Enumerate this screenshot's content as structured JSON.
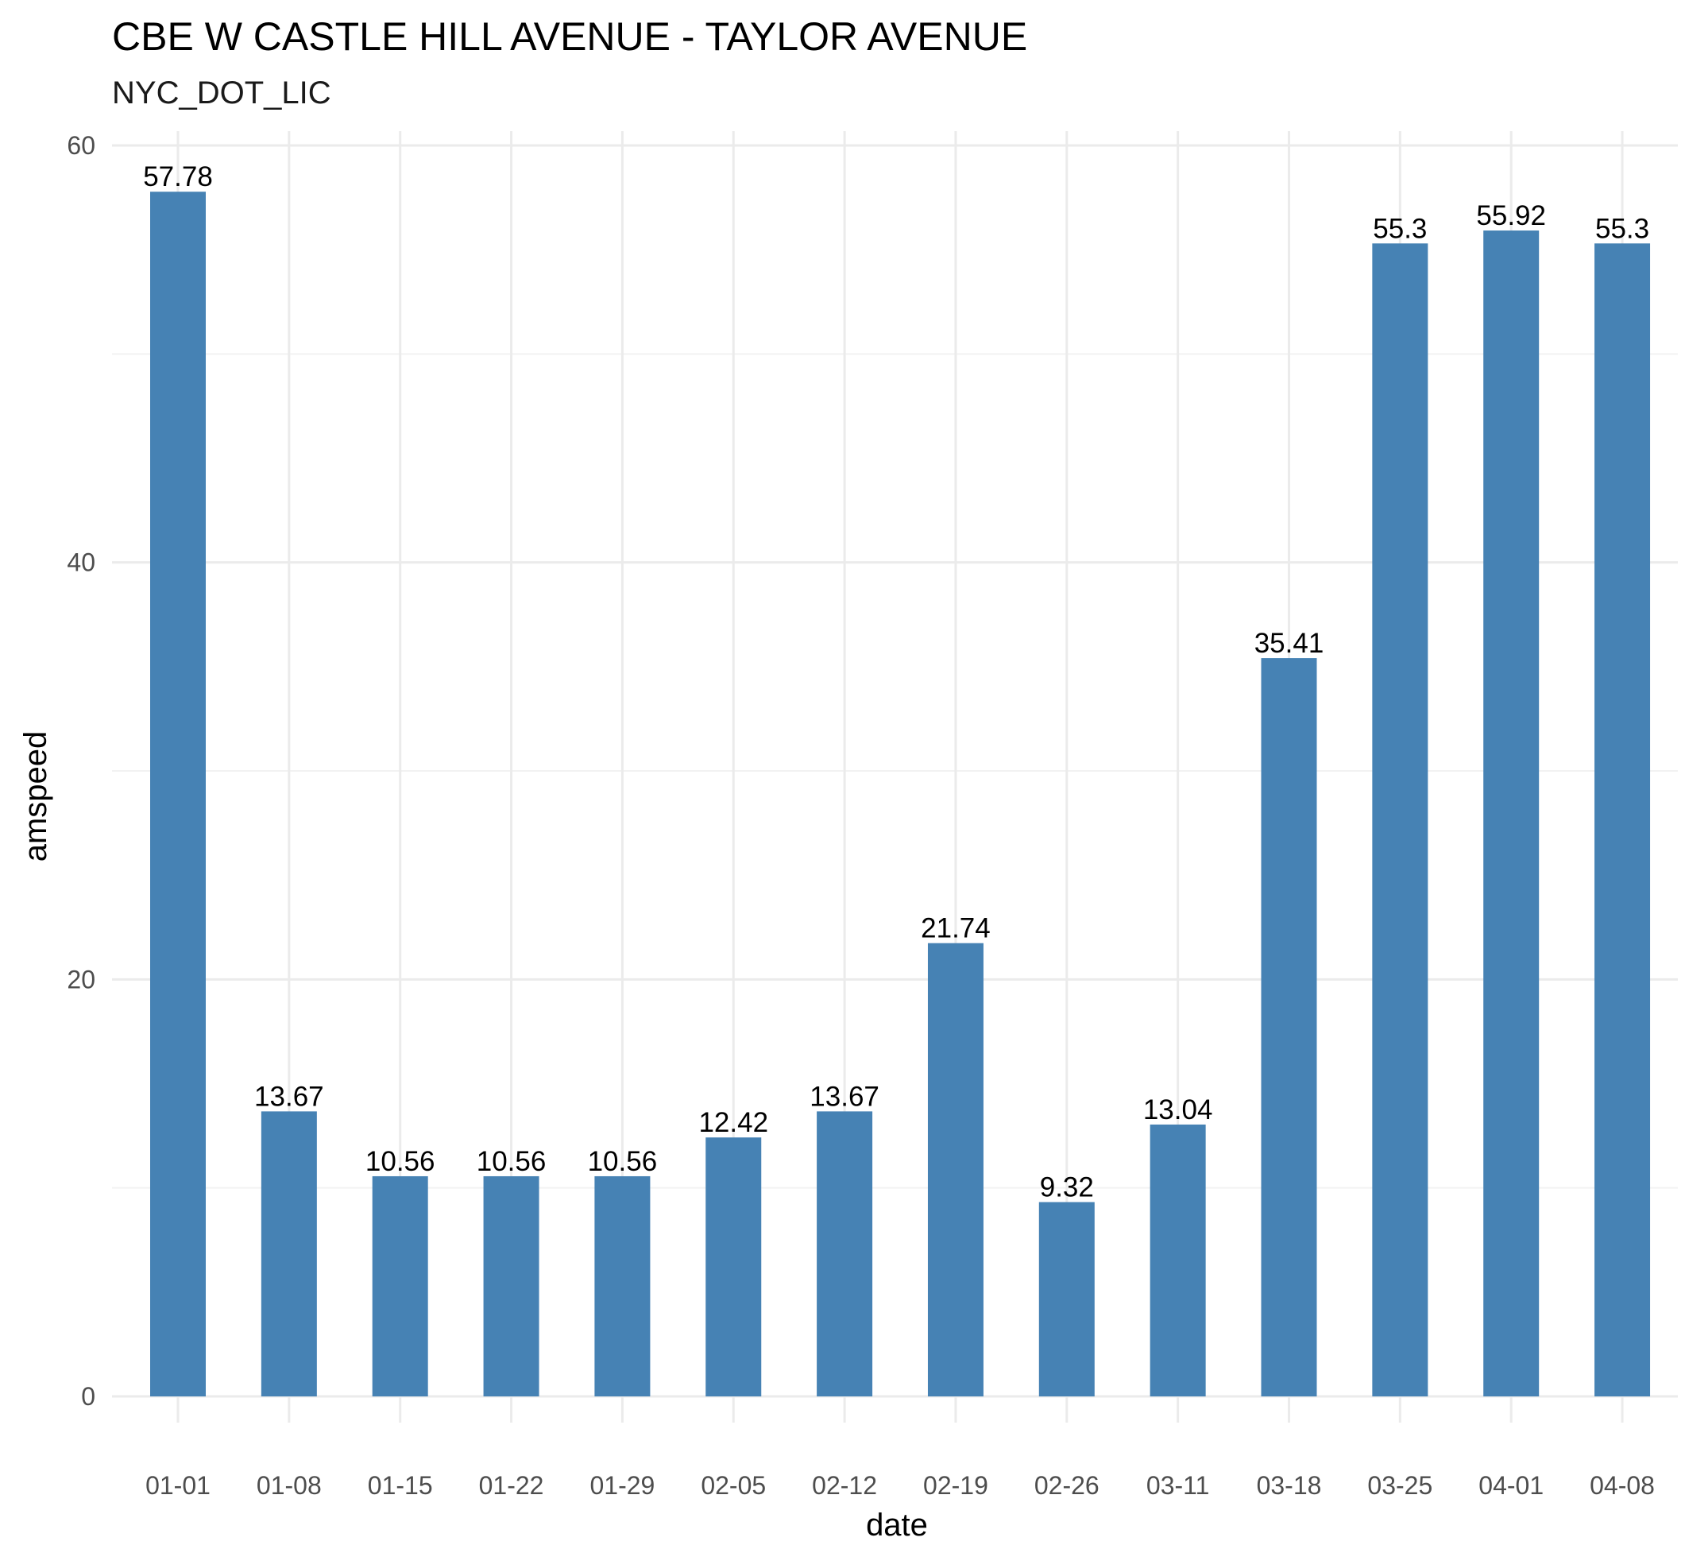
{
  "chart_data": {
    "type": "bar",
    "title": "CBE W CASTLE HILL AVENUE - TAYLOR AVENUE",
    "subtitle": "NYC_DOT_LIC",
    "xlabel": "date",
    "ylabel": "amspeed",
    "categories": [
      "01-01",
      "01-08",
      "01-15",
      "01-22",
      "01-29",
      "02-05",
      "02-12",
      "02-19",
      "02-26",
      "03-11",
      "03-18",
      "03-25",
      "04-01",
      "04-08"
    ],
    "values": [
      57.78,
      13.67,
      10.56,
      10.56,
      10.56,
      12.42,
      13.67,
      21.74,
      9.32,
      13.04,
      35.41,
      55.3,
      55.92,
      55.3
    ],
    "value_labels": [
      "57.78",
      "13.67",
      "10.56",
      "10.56",
      "10.56",
      "12.42",
      "13.67",
      "21.74",
      "9.32",
      "13.04",
      "35.41",
      "55.3",
      "55.92",
      "55.3"
    ],
    "ylim": [
      0,
      60
    ],
    "yticks": [
      0,
      20,
      40,
      60
    ],
    "ytick_labels": [
      "0",
      "20",
      "40",
      "60"
    ],
    "grid": true,
    "legend": "none",
    "bar_color": "#4682B4"
  }
}
